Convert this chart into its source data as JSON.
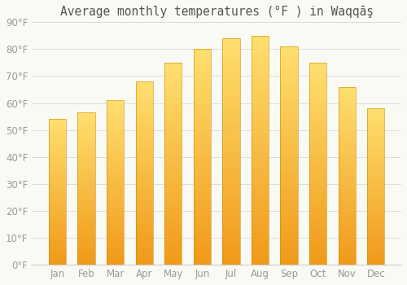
{
  "months": [
    "Jan",
    "Feb",
    "Mar",
    "Apr",
    "May",
    "Jun",
    "Jul",
    "Aug",
    "Sep",
    "Oct",
    "Nov",
    "Dec"
  ],
  "values": [
    54,
    56.5,
    61,
    68,
    75,
    80,
    84,
    85,
    81,
    75,
    66,
    58
  ],
  "title": "Average monthly temperatures (°F ) in Waqqāş",
  "ylim": [
    0,
    90
  ],
  "yticks": [
    0,
    10,
    20,
    30,
    40,
    50,
    60,
    70,
    80,
    90
  ],
  "ytick_labels": [
    "0°F",
    "10°F",
    "20°F",
    "30°F",
    "40°F",
    "50°F",
    "60°F",
    "70°F",
    "80°F",
    "90°F"
  ],
  "bar_color_main": "#F5A623",
  "bar_color_light": "#FFD966",
  "background_color": "#FAFAF5",
  "grid_color": "#DDDDDD",
  "title_fontsize": 10.5,
  "tick_fontsize": 8.5,
  "title_color": "#555555",
  "tick_color": "#999999"
}
